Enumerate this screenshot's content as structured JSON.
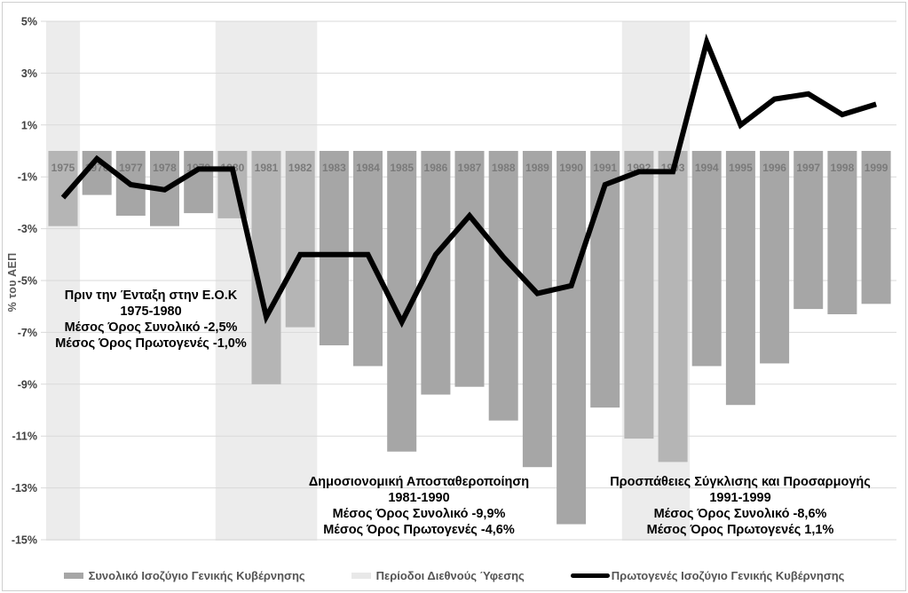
{
  "chart_data": {
    "type": "bar",
    "title": "",
    "xlabel": "",
    "ylabel": "% του ΑΕΠ",
    "ylim": [
      -15,
      5
    ],
    "grid": true,
    "legend_position": "bottom",
    "yticks": [
      {
        "label": "5%",
        "value": 5
      },
      {
        "label": "3%",
        "value": 3
      },
      {
        "label": "1%",
        "value": 1
      },
      {
        "label": "-1%",
        "value": -1
      },
      {
        "label": "-3%",
        "value": -3
      },
      {
        "label": "-5%",
        "value": -5
      },
      {
        "label": "-7%",
        "value": -7
      },
      {
        "label": "-9%",
        "value": -9
      },
      {
        "label": "-11%",
        "value": -11
      },
      {
        "label": "-13%",
        "value": -13
      },
      {
        "label": "-15%",
        "value": -15
      }
    ],
    "categories": [
      "1975",
      "1976",
      "1977",
      "1978",
      "1979",
      "1980",
      "1981",
      "1982",
      "1983",
      "1984",
      "1985",
      "1986",
      "1987",
      "1988",
      "1989",
      "1990",
      "1991",
      "1992",
      "1993",
      "1994",
      "1995",
      "1996",
      "1997",
      "1998",
      "1999"
    ],
    "series": [
      {
        "name": "Συνολικό Ισοζύγιο Γενικής Κυβέρνησης",
        "type": "bar",
        "values": [
          -2.9,
          -1.7,
          -2.5,
          -2.9,
          -2.4,
          -2.6,
          -9.0,
          -6.8,
          -7.5,
          -8.3,
          -11.6,
          -9.4,
          -9.1,
          -10.4,
          -12.2,
          -14.4,
          -9.9,
          -11.1,
          -12.0,
          -8.3,
          -9.8,
          -8.2,
          -6.1,
          -6.3,
          -5.9
        ]
      },
      {
        "name": "Πρωτογενές Ισοζύγιο Γενικής Κυβέρνησης",
        "type": "line",
        "values": [
          -1.8,
          -0.3,
          -1.3,
          -1.5,
          -0.7,
          -0.7,
          -6.4,
          -4.0,
          -4.0,
          -4.0,
          -6.6,
          -4.0,
          -2.5,
          -4.1,
          -5.5,
          -5.2,
          -1.3,
          -0.8,
          -0.8,
          4.2,
          1.0,
          2.0,
          2.2,
          1.4,
          1.8
        ]
      }
    ],
    "recession_bands": {
      "name": "Περίοδοι Διεθνούς Ύφεσης",
      "periods": [
        [
          "1975",
          "1975"
        ],
        [
          "1980",
          "1982"
        ],
        [
          "1992",
          "1993"
        ]
      ]
    }
  },
  "annotations": [
    {
      "lines": [
        "Πριν την Ένταξη στην Ε.Ο.Κ",
        "1975-1980",
        "Μέσος Όρος Συνολικό -2,5%",
        "Μέσος Όρος Πρωτογενές -1,0%"
      ]
    },
    {
      "lines": [
        "Δημοσιονομική Αποσταθεροποίηση",
        "1981-1990",
        "Μέσος Όρος Συνολικό -9,9%",
        "Μέσος Όρος Πρωτογενές -4,6%"
      ]
    },
    {
      "lines": [
        "Προσπάθειες Σύγκλισης και Προσαρμογής",
        "1991-1999",
        "Μέσος Όρος Συνολικό -8,6%",
        "Μέσος Όρος Πρωτογενές 1,1%"
      ]
    }
  ],
  "legend": {
    "items": [
      {
        "label": "Συνολικό Ισοζύγιο Γενικής Κυβέρνησης",
        "swatch": "bar"
      },
      {
        "label": "Περίοδοι Διεθνούς Ύφεσης",
        "swatch": "band"
      },
      {
        "label": "Πρωτογενές Ισοζύγιο Γενικής Κυβέρνησης",
        "swatch": "line"
      }
    ]
  },
  "colors": {
    "bar": "#a6a6a6",
    "bar_in_recession": "#b5b5b5",
    "recession_band": "#ececec",
    "line": "#000000",
    "grid": "#d9d9d9",
    "tick_label": "#3f3f3f",
    "year_label": "#7a7a7a",
    "annotation_text": "#000000",
    "legend_text": "#545454"
  }
}
